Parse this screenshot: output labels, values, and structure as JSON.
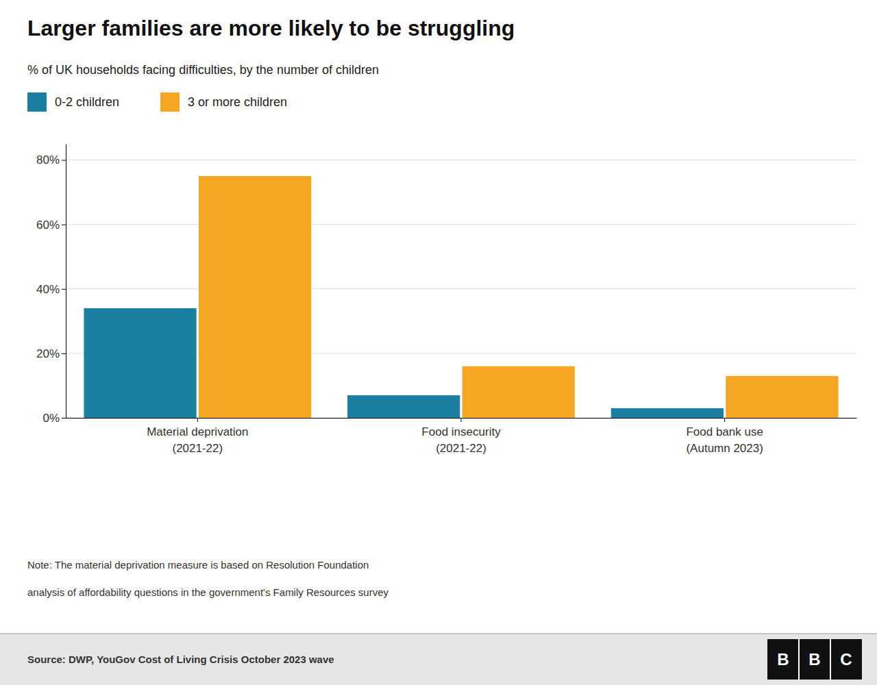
{
  "chart_data": {
    "type": "bar",
    "title": "Larger families are more likely to be struggling",
    "subtitle": "% of UK households facing difficulties, by the number of children",
    "categories": [
      "Material deprivation\n(2021-22)",
      "Food insecurity\n(2021-22)",
      "Food bank use\n(Autumn 2023)"
    ],
    "series": [
      {
        "name": "0-2 children",
        "color": "#1a7fa0",
        "values": [
          34,
          7,
          3
        ]
      },
      {
        "name": "3 or more children",
        "color": "#f5a623",
        "values": [
          75,
          16,
          13
        ]
      }
    ],
    "ylim": [
      0,
      85
    ],
    "yticks": [
      {
        "value": 0,
        "label": "0%"
      },
      {
        "value": 20,
        "label": "20%"
      },
      {
        "value": 40,
        "label": "40%"
      },
      {
        "value": 60,
        "label": "60%"
      },
      {
        "value": 80,
        "label": "80%"
      }
    ],
    "grid": true,
    "legend": "top",
    "notes": [
      "Note: The material deprivation measure is based on Resolution Foundation",
      "analysis of affordability questions in the government's Family Resources survey"
    ],
    "source": "Source: DWP, YouGov Cost of Living Crisis October 2023 wave",
    "logo": "BBC"
  }
}
